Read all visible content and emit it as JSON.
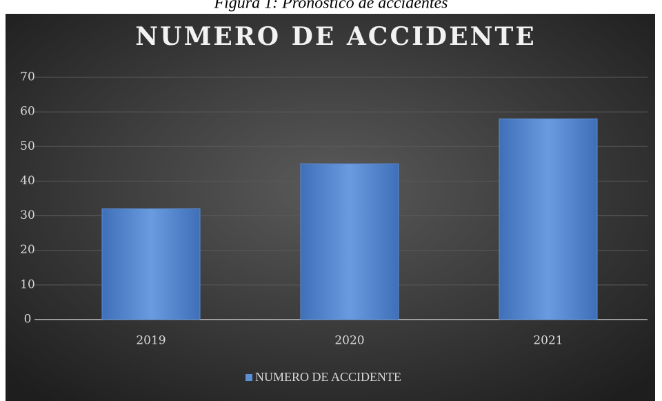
{
  "caption": "Figura 1: Pronóstico de accidentes",
  "chart_data": {
    "type": "bar",
    "title": "NUMERO DE ACCIDENTE",
    "categories": [
      "2019",
      "2020",
      "2021"
    ],
    "series": [
      {
        "name": "NUMERO DE ACCIDENTE",
        "color": "#5b8fd6",
        "values": [
          32,
          45,
          58
        ]
      }
    ],
    "ylim": [
      0,
      70
    ],
    "yticks": [
      0,
      10,
      20,
      30,
      40,
      50,
      60,
      70
    ],
    "grid": true,
    "legend": "bottom"
  }
}
